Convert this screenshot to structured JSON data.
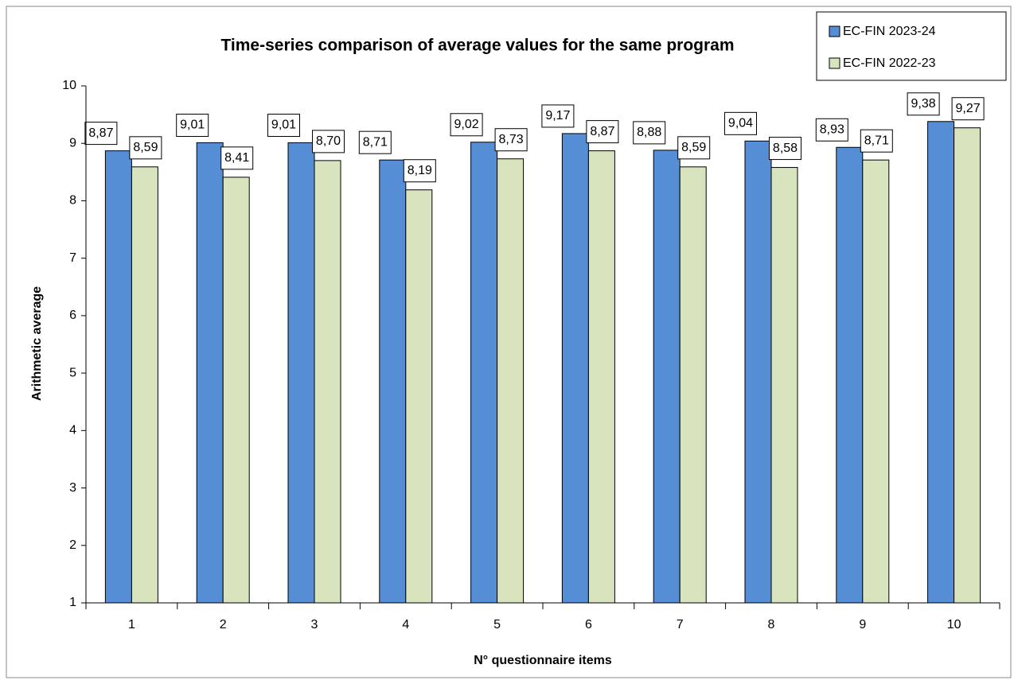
{
  "chart_data": {
    "type": "bar",
    "title": "Time-series comparison of average values for the same program",
    "x_label": "N° questionnaire items",
    "y_label": "Arithmetic average",
    "categories": [
      "1",
      "2",
      "3",
      "4",
      "5",
      "6",
      "7",
      "8",
      "9",
      "10"
    ],
    "series": [
      {
        "name": "EC-FIN 2023-24",
        "color": "#558ed5",
        "values": [
          8.87,
          9.01,
          9.01,
          8.71,
          9.02,
          9.17,
          8.88,
          9.04,
          8.93,
          9.38
        ],
        "value_labels": [
          "8,87",
          "9,01",
          "9,01",
          "8,71",
          "9,02",
          "9,17",
          "8,88",
          "9,04",
          "8,93",
          "9,38"
        ]
      },
      {
        "name": "EC-FIN 2022-23",
        "color": "#d7e4bd",
        "values": [
          8.59,
          8.41,
          8.7,
          8.19,
          8.73,
          8.87,
          8.59,
          8.58,
          8.71,
          9.27
        ],
        "value_labels": [
          "8,59",
          "8,41",
          "8,70",
          "8,19",
          "8,73",
          "8,87",
          "8,59",
          "8,58",
          "8,71",
          "9,27"
        ]
      }
    ],
    "ylim": [
      1,
      10
    ],
    "yticks": [
      1,
      2,
      3,
      4,
      5,
      6,
      7,
      8,
      9,
      10
    ],
    "legend": "top-right"
  }
}
